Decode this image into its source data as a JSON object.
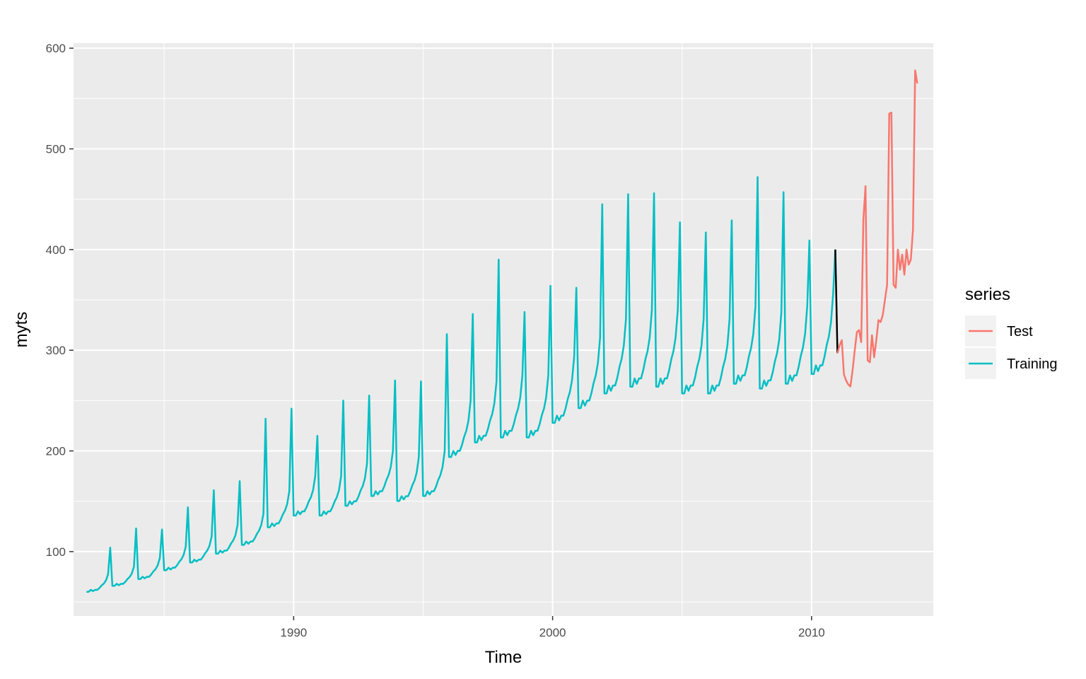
{
  "chart_data": {
    "type": "line",
    "title": "",
    "xlabel": "Time",
    "ylabel": "myts",
    "xlim": [
      1981.5,
      2014.7
    ],
    "ylim": [
      36,
      605
    ],
    "x_ticks": [
      {
        "value": 1990,
        "label": "1990"
      },
      {
        "value": 2000,
        "label": "2000"
      },
      {
        "value": 2010,
        "label": "2010"
      }
    ],
    "x_minor_ticks": [
      1985,
      1995,
      2005,
      2015
    ],
    "y_ticks": [
      {
        "value": 100,
        "label": "100"
      },
      {
        "value": 200,
        "label": "200"
      },
      {
        "value": 300,
        "label": "300"
      },
      {
        "value": 400,
        "label": "400"
      },
      {
        "value": 500,
        "label": "500"
      },
      {
        "value": 600,
        "label": "600"
      }
    ],
    "y_minor_ticks": [
      50,
      150,
      250,
      350,
      450,
      550
    ],
    "grid": true,
    "background": "#ebebeb",
    "legend": {
      "title": "series",
      "position": "right",
      "entries": [
        {
          "name": "Test",
          "color": "#f8766d"
        },
        {
          "name": "Training",
          "color": "#00bfc4"
        }
      ]
    },
    "connector": {
      "color": "#000000",
      "x": [
        2010.917,
        2011.0
      ],
      "y": [
        400,
        297
      ]
    },
    "series": [
      {
        "name": "Training",
        "color": "#00bfc4",
        "start": 1982.0,
        "frequency": 12,
        "annual_base": [
          62,
          68,
          75,
          84,
          92,
          101,
          110,
          128,
          140,
          140,
          150,
          160,
          155,
          160,
          200,
          215,
          220,
          220,
          235,
          250,
          265,
          272,
          272,
          265,
          265,
          275,
          270,
          275,
          285
        ],
        "december_peak": [
          104,
          123,
          122,
          144,
          161,
          170,
          232,
          242,
          215,
          250,
          255,
          270,
          269,
          316,
          336,
          390,
          338,
          364,
          362,
          445,
          455,
          456,
          427,
          417,
          429,
          472,
          457,
          409,
          400
        ],
        "monthly_factors": [
          0.97,
          0.97,
          1.0,
          0.98,
          1.0,
          1.0,
          1.03,
          1.07,
          1.1,
          1.15,
          1.25,
          1.0
        ]
      },
      {
        "name": "Test",
        "color": "#f8766d",
        "start": 2011.0,
        "frequency": 12,
        "values": [
          297,
          305,
          310,
          276,
          270,
          266,
          264,
          280,
          300,
          318,
          320,
          308,
          430,
          463,
          290,
          288,
          315,
          293,
          310,
          330,
          328,
          335,
          350,
          365,
          535,
          536,
          365,
          362,
          400,
          380,
          395,
          375,
          400,
          385,
          390,
          420,
          578,
          565
        ]
      }
    ]
  }
}
